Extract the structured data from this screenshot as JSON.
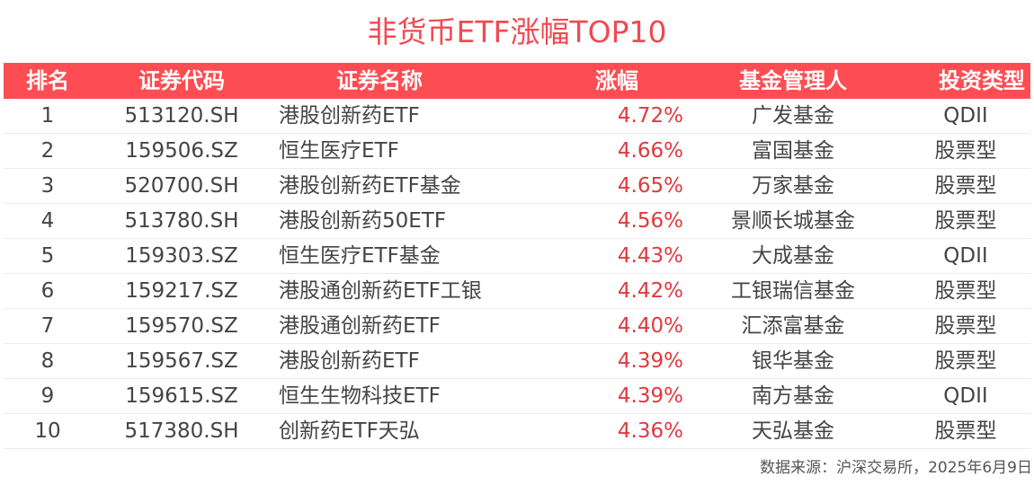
{
  "title": "非货币ETF涨幅TOP10",
  "colors": {
    "title": "#f04a50",
    "header_bg": "#fe4d52",
    "header_text": "#ffffff",
    "change_text": "#e0393e",
    "body_text": "#444444",
    "row_divider": "#e8ebf0"
  },
  "table": {
    "headers": {
      "rank": "排名",
      "code": "证券代码",
      "name": "证券名称",
      "change": "涨幅",
      "manager": "基金管理人",
      "type": "投资类型"
    },
    "rows": [
      {
        "rank": "1",
        "code": "513120.SH",
        "name": "港股创新药ETF",
        "change": "4.72%",
        "manager": "广发基金",
        "type": "QDII"
      },
      {
        "rank": "2",
        "code": "159506.SZ",
        "name": "恒生医疗ETF",
        "change": "4.66%",
        "manager": "富国基金",
        "type": "股票型"
      },
      {
        "rank": "3",
        "code": "520700.SH",
        "name": "港股创新药ETF基金",
        "change": "4.65%",
        "manager": "万家基金",
        "type": "股票型"
      },
      {
        "rank": "4",
        "code": "513780.SH",
        "name": "港股创新药50ETF",
        "change": "4.56%",
        "manager": "景顺长城基金",
        "type": "股票型"
      },
      {
        "rank": "5",
        "code": "159303.SZ",
        "name": "恒生医疗ETF基金",
        "change": "4.43%",
        "manager": "大成基金",
        "type": "QDII"
      },
      {
        "rank": "6",
        "code": "159217.SZ",
        "name": "港股通创新药ETF工银",
        "change": "4.42%",
        "manager": "工银瑞信基金",
        "type": "股票型"
      },
      {
        "rank": "7",
        "code": "159570.SZ",
        "name": "港股通创新药ETF",
        "change": "4.40%",
        "manager": "汇添富基金",
        "type": "股票型"
      },
      {
        "rank": "8",
        "code": "159567.SZ",
        "name": "港股创新药ETF",
        "change": "4.39%",
        "manager": "银华基金",
        "type": "股票型"
      },
      {
        "rank": "9",
        "code": "159615.SZ",
        "name": "恒生生物科技ETF",
        "change": "4.39%",
        "manager": "南方基金",
        "type": "QDII"
      },
      {
        "rank": "10",
        "code": "517380.SH",
        "name": "创新药ETF天弘",
        "change": "4.36%",
        "manager": "天弘基金",
        "type": "股票型"
      }
    ]
  },
  "source": "数据来源：沪深交易所，2025年6月9日",
  "chart_data": {
    "type": "table",
    "title": "非货币ETF涨幅TOP10",
    "columns": [
      "排名",
      "证券代码",
      "证券名称",
      "涨幅",
      "基金管理人",
      "投资类型"
    ],
    "rows": [
      [
        1,
        "513120.SH",
        "港股创新药ETF",
        4.72,
        "广发基金",
        "QDII"
      ],
      [
        2,
        "159506.SZ",
        "恒生医疗ETF",
        4.66,
        "富国基金",
        "股票型"
      ],
      [
        3,
        "520700.SH",
        "港股创新药ETF基金",
        4.65,
        "万家基金",
        "股票型"
      ],
      [
        4,
        "513780.SH",
        "港股创新药50ETF",
        4.56,
        "景顺长城基金",
        "股票型"
      ],
      [
        5,
        "159303.SZ",
        "恒生医疗ETF基金",
        4.43,
        "大成基金",
        "QDII"
      ],
      [
        6,
        "159217.SZ",
        "港股通创新药ETF工银",
        4.42,
        "工银瑞信基金",
        "股票型"
      ],
      [
        7,
        "159570.SZ",
        "港股通创新药ETF",
        4.4,
        "汇添富基金",
        "股票型"
      ],
      [
        8,
        "159567.SZ",
        "港股创新药ETF",
        4.39,
        "银华基金",
        "股票型"
      ],
      [
        9,
        "159615.SZ",
        "恒生生物科技ETF",
        4.39,
        "南方基金",
        "QDII"
      ],
      [
        10,
        "517380.SH",
        "创新药ETF天弘",
        4.36,
        "天弘基金",
        "股票型"
      ]
    ],
    "units": {
      "涨幅": "%"
    },
    "annotation": "数据来源：沪深交易所，2025年6月9日"
  }
}
